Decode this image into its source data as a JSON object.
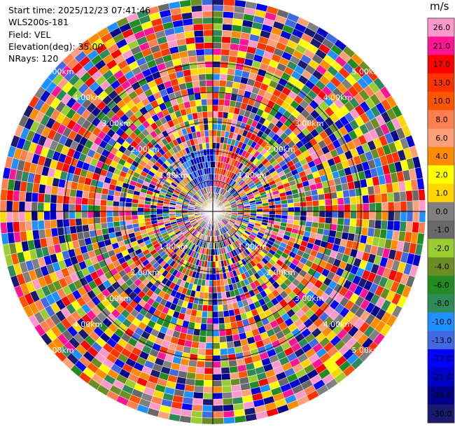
{
  "info": {
    "start_time": "Start time: 2025/12/23 07:41:46",
    "instrument": "WLS200s-181",
    "field": "Field: VEL",
    "elevation": "Elevation(deg): 35.00",
    "nrays": "NRays: 120"
  },
  "chart_data": {
    "type": "heatmap",
    "projection": "polar (PPI)",
    "n_rays": 120,
    "range_ring_labels": [
      "1.00km",
      "2.00km",
      "3.00km",
      "4.00km",
      "5.00km"
    ],
    "colorbar": {
      "unit": "m/s",
      "ticks": [
        "26.0",
        "21.0",
        "17.0",
        "13.0",
        "10.0",
        "8.0",
        "6.0",
        "4.0",
        "2.0",
        "1.0",
        "0.0",
        "-1.0",
        "-2.0",
        "-4.0",
        "-6.0",
        "-8.0",
        "-10.0",
        "-13.0",
        "-17.0",
        "-21.0",
        "-26.0",
        "-30.0"
      ],
      "colors": [
        "#ff99cc",
        "#ff1493",
        "#ff0000",
        "#ff3300",
        "#ff5500",
        "#ff7f50",
        "#ffa07a",
        "#ff8c00",
        "#ffff00",
        "#ffd700",
        "#808080",
        "#696969",
        "#9acd32",
        "#6b8e23",
        "#228b22",
        "#2e8b57",
        "#1e90ff",
        "#4169e1",
        "#0000ff",
        "#0000cd",
        "#00008b",
        "#191970"
      ]
    }
  }
}
